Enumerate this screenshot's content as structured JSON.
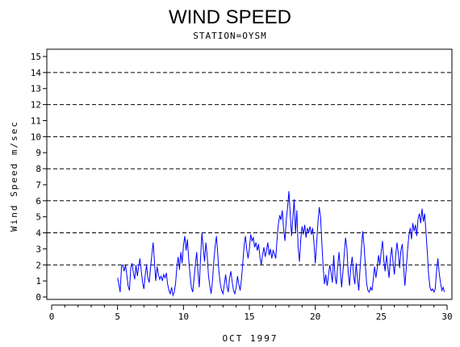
{
  "chart_data": {
    "type": "line",
    "title": "WIND SPEED",
    "subtitle": "STATION=OYSM",
    "xlabel": "OCT 1997",
    "ylabel": "Wind Speed m/sec",
    "xlim": [
      0,
      30
    ],
    "ylim": [
      0,
      15.5
    ],
    "x_ticks": [
      0,
      5,
      10,
      15,
      20,
      25,
      30
    ],
    "y_ticks": [
      0,
      1,
      2,
      3,
      4,
      5,
      6,
      7,
      8,
      9,
      10,
      11,
      12,
      13,
      14,
      15
    ],
    "gridlines_y": [
      2,
      4,
      6,
      8,
      10,
      12,
      14
    ],
    "grid": "horizontal dashed at even values",
    "line_color": "#0000ff",
    "series": [
      {
        "points": [
          [
            5.0,
            1.2
          ],
          [
            5.1,
            0.8
          ],
          [
            5.2,
            0.3
          ],
          [
            5.3,
            1.9
          ],
          [
            5.4,
            2.0
          ],
          [
            5.5,
            1.6
          ],
          [
            5.6,
            2.0
          ],
          [
            5.7,
            1.4
          ],
          [
            5.8,
            0.7
          ],
          [
            5.9,
            0.4
          ],
          [
            6.0,
            1.8
          ],
          [
            6.1,
            2.1
          ],
          [
            6.2,
            1.5
          ],
          [
            6.3,
            1.1
          ],
          [
            6.4,
            2.0
          ],
          [
            6.5,
            1.3
          ],
          [
            6.6,
            1.9
          ],
          [
            6.7,
            2.4
          ],
          [
            6.8,
            1.6
          ],
          [
            6.9,
            0.9
          ],
          [
            7.0,
            0.5
          ],
          [
            7.1,
            1.4
          ],
          [
            7.2,
            2.0
          ],
          [
            7.3,
            1.2
          ],
          [
            7.4,
            0.9
          ],
          [
            7.5,
            1.8
          ],
          [
            7.6,
            2.6
          ],
          [
            7.7,
            3.4
          ],
          [
            7.8,
            2.2
          ],
          [
            7.9,
            1.0
          ],
          [
            8.0,
            1.9
          ],
          [
            8.1,
            1.4
          ],
          [
            8.2,
            1.1
          ],
          [
            8.3,
            1.3
          ],
          [
            8.4,
            1.0
          ],
          [
            8.5,
            1.4
          ],
          [
            8.6,
            1.2
          ],
          [
            8.7,
            1.5
          ],
          [
            8.8,
            0.8
          ],
          [
            8.9,
            0.4
          ],
          [
            9.0,
            0.2
          ],
          [
            9.1,
            0.6
          ],
          [
            9.2,
            0.1
          ],
          [
            9.3,
            0.3
          ],
          [
            9.4,
            0.8
          ],
          [
            9.5,
            1.9
          ],
          [
            9.6,
            2.5
          ],
          [
            9.7,
            1.7
          ],
          [
            9.8,
            2.8
          ],
          [
            9.9,
            2.1
          ],
          [
            10.0,
            3.2
          ],
          [
            10.1,
            3.8
          ],
          [
            10.2,
            2.9
          ],
          [
            10.3,
            3.6
          ],
          [
            10.4,
            2.3
          ],
          [
            10.5,
            1.4
          ],
          [
            10.6,
            0.6
          ],
          [
            10.7,
            0.3
          ],
          [
            10.8,
            1.1
          ],
          [
            10.9,
            2.0
          ],
          [
            11.0,
            2.8
          ],
          [
            11.1,
            1.6
          ],
          [
            11.2,
            0.6
          ],
          [
            11.3,
            2.5
          ],
          [
            11.4,
            4.0
          ],
          [
            11.5,
            3.1
          ],
          [
            11.6,
            2.2
          ],
          [
            11.7,
            3.4
          ],
          [
            11.8,
            2.6
          ],
          [
            11.9,
            1.3
          ],
          [
            12.0,
            0.7
          ],
          [
            12.1,
            0.2
          ],
          [
            12.2,
            1.0
          ],
          [
            12.3,
            2.2
          ],
          [
            12.4,
            3.1
          ],
          [
            12.5,
            3.8
          ],
          [
            12.6,
            2.7
          ],
          [
            12.7,
            1.5
          ],
          [
            12.8,
            0.8
          ],
          [
            12.9,
            0.4
          ],
          [
            13.0,
            0.2
          ],
          [
            13.1,
            0.8
          ],
          [
            13.2,
            1.4
          ],
          [
            13.3,
            0.7
          ],
          [
            13.4,
            0.3
          ],
          [
            13.5,
            1.2
          ],
          [
            13.6,
            1.6
          ],
          [
            13.7,
            0.9
          ],
          [
            13.8,
            0.4
          ],
          [
            13.9,
            0.2
          ],
          [
            14.0,
            0.6
          ],
          [
            14.1,
            1.3
          ],
          [
            14.2,
            0.8
          ],
          [
            14.3,
            0.4
          ],
          [
            14.4,
            1.1
          ],
          [
            14.5,
            2.1
          ],
          [
            14.6,
            3.2
          ],
          [
            14.7,
            3.8
          ],
          [
            14.8,
            3.0
          ],
          [
            14.9,
            2.4
          ],
          [
            15.0,
            3.0
          ],
          [
            15.1,
            3.9
          ],
          [
            15.2,
            3.5
          ],
          [
            15.3,
            3.7
          ],
          [
            15.4,
            3.1
          ],
          [
            15.5,
            3.4
          ],
          [
            15.6,
            2.9
          ],
          [
            15.7,
            3.3
          ],
          [
            15.8,
            2.5
          ],
          [
            15.9,
            2.0
          ],
          [
            16.0,
            2.6
          ],
          [
            16.1,
            3.1
          ],
          [
            16.2,
            2.5
          ],
          [
            16.3,
            2.9
          ],
          [
            16.4,
            3.4
          ],
          [
            16.5,
            2.6
          ],
          [
            16.6,
            3.0
          ],
          [
            16.7,
            2.4
          ],
          [
            16.8,
            2.9
          ],
          [
            16.9,
            2.7
          ],
          [
            17.0,
            2.4
          ],
          [
            17.1,
            3.6
          ],
          [
            17.2,
            4.5
          ],
          [
            17.3,
            5.1
          ],
          [
            17.4,
            4.8
          ],
          [
            17.5,
            5.4
          ],
          [
            17.6,
            4.2
          ],
          [
            17.7,
            3.5
          ],
          [
            17.8,
            4.8
          ],
          [
            17.9,
            5.6
          ],
          [
            18.0,
            6.6
          ],
          [
            18.1,
            5.2
          ],
          [
            18.2,
            3.8
          ],
          [
            18.3,
            4.9
          ],
          [
            18.4,
            6.1
          ],
          [
            18.5,
            4.0
          ],
          [
            18.6,
            5.4
          ],
          [
            18.7,
            3.1
          ],
          [
            18.8,
            2.2
          ],
          [
            18.9,
            3.6
          ],
          [
            19.0,
            4.4
          ],
          [
            19.1,
            3.9
          ],
          [
            19.2,
            4.5
          ],
          [
            19.3,
            3.7
          ],
          [
            19.4,
            4.3
          ],
          [
            19.5,
            4.0
          ],
          [
            19.6,
            4.4
          ],
          [
            19.7,
            3.9
          ],
          [
            19.8,
            4.3
          ],
          [
            19.9,
            3.4
          ],
          [
            20.0,
            2.1
          ],
          [
            20.1,
            3.3
          ],
          [
            20.2,
            4.6
          ],
          [
            20.3,
            5.6
          ],
          [
            20.4,
            5.0
          ],
          [
            20.5,
            3.4
          ],
          [
            20.6,
            1.8
          ],
          [
            20.7,
            0.8
          ],
          [
            20.8,
            1.4
          ],
          [
            20.9,
            0.7
          ],
          [
            21.0,
            1.3
          ],
          [
            21.1,
            2.0
          ],
          [
            21.2,
            1.5
          ],
          [
            21.3,
            0.9
          ],
          [
            21.4,
            2.6
          ],
          [
            21.5,
            1.3
          ],
          [
            21.6,
            0.8
          ],
          [
            21.7,
            1.9
          ],
          [
            21.8,
            2.8
          ],
          [
            21.9,
            1.7
          ],
          [
            22.0,
            0.6
          ],
          [
            22.1,
            1.6
          ],
          [
            22.2,
            2.7
          ],
          [
            22.3,
            3.7
          ],
          [
            22.4,
            3.0
          ],
          [
            22.5,
            1.5
          ],
          [
            22.6,
            0.7
          ],
          [
            22.7,
            1.9
          ],
          [
            22.8,
            2.5
          ],
          [
            22.9,
            1.4
          ],
          [
            23.0,
            0.8
          ],
          [
            23.1,
            2.1
          ],
          [
            23.2,
            1.2
          ],
          [
            23.3,
            0.4
          ],
          [
            23.4,
            1.8
          ],
          [
            23.5,
            3.0
          ],
          [
            23.6,
            4.1
          ],
          [
            23.7,
            3.2
          ],
          [
            23.8,
            2.0
          ],
          [
            23.9,
            0.8
          ],
          [
            24.0,
            0.4
          ],
          [
            24.1,
            0.3
          ],
          [
            24.2,
            0.6
          ],
          [
            24.3,
            0.4
          ],
          [
            24.4,
            1.1
          ],
          [
            24.5,
            1.9
          ],
          [
            24.6,
            1.2
          ],
          [
            24.7,
            1.8
          ],
          [
            24.8,
            2.6
          ],
          [
            24.9,
            2.0
          ],
          [
            25.0,
            2.8
          ],
          [
            25.1,
            3.5
          ],
          [
            25.2,
            2.3
          ],
          [
            25.3,
            1.6
          ],
          [
            25.4,
            2.6
          ],
          [
            25.5,
            1.9
          ],
          [
            25.6,
            1.2
          ],
          [
            25.7,
            2.4
          ],
          [
            25.8,
            3.1
          ],
          [
            25.9,
            2.2
          ],
          [
            26.0,
            1.4
          ],
          [
            26.1,
            2.6
          ],
          [
            26.2,
            3.4
          ],
          [
            26.3,
            2.7
          ],
          [
            26.4,
            1.8
          ],
          [
            26.5,
            2.9
          ],
          [
            26.6,
            3.3
          ],
          [
            26.7,
            1.9
          ],
          [
            26.8,
            0.7
          ],
          [
            26.9,
            1.8
          ],
          [
            27.0,
            2.9
          ],
          [
            27.1,
            3.8
          ],
          [
            27.2,
            4.3
          ],
          [
            27.3,
            3.6
          ],
          [
            27.4,
            4.6
          ],
          [
            27.5,
            4.1
          ],
          [
            27.6,
            4.5
          ],
          [
            27.7,
            3.8
          ],
          [
            27.8,
            4.9
          ],
          [
            27.9,
            5.2
          ],
          [
            28.0,
            4.6
          ],
          [
            28.1,
            5.5
          ],
          [
            28.2,
            4.7
          ],
          [
            28.3,
            5.2
          ],
          [
            28.4,
            4.0
          ],
          [
            28.5,
            2.8
          ],
          [
            28.6,
            1.4
          ],
          [
            28.7,
            0.6
          ],
          [
            28.8,
            0.4
          ],
          [
            28.9,
            0.5
          ],
          [
            29.0,
            0.3
          ],
          [
            29.1,
            0.5
          ],
          [
            29.2,
            1.6
          ],
          [
            29.3,
            2.4
          ],
          [
            29.4,
            1.5
          ],
          [
            29.5,
            0.9
          ],
          [
            29.6,
            0.4
          ],
          [
            29.7,
            0.6
          ],
          [
            29.8,
            0.3
          ]
        ]
      }
    ]
  }
}
